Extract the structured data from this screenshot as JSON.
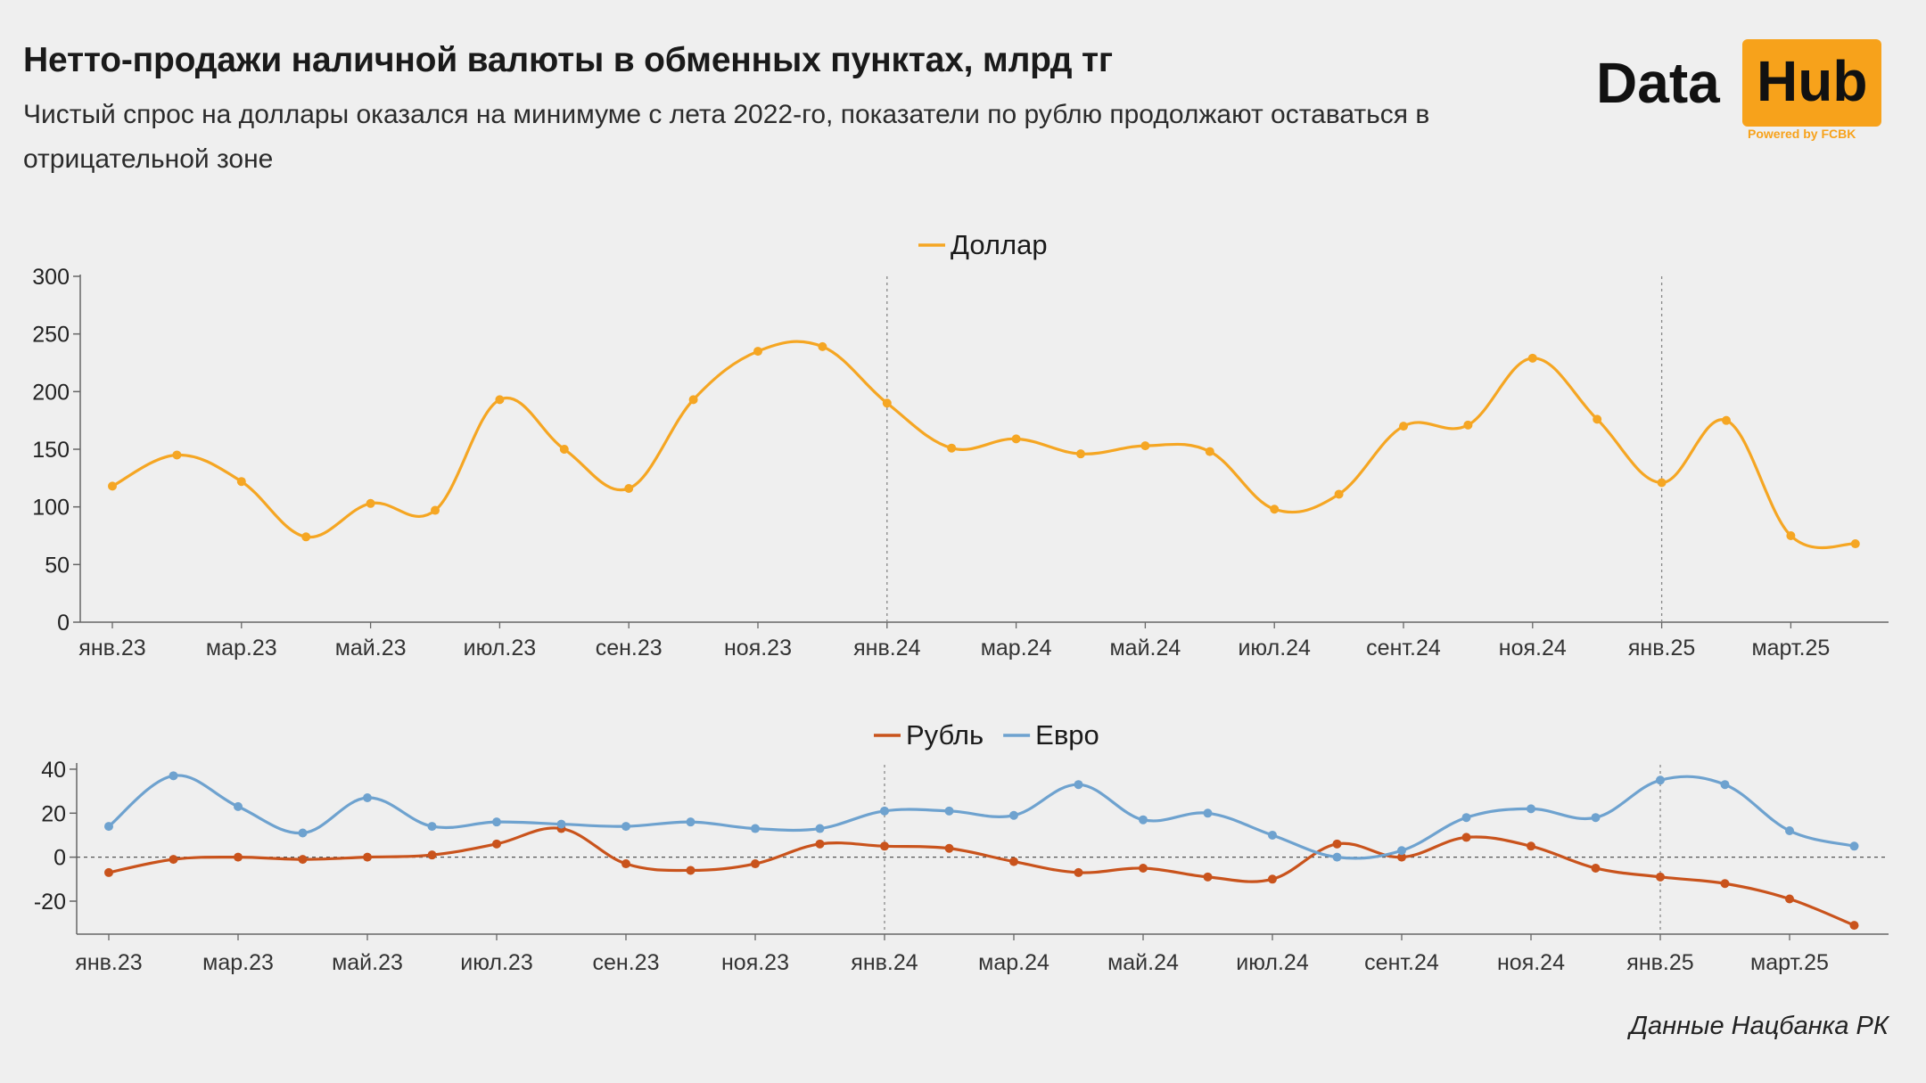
{
  "header": {
    "title": "Нетто-продажи наличной валюты в обменных пунктах, млрд тг",
    "subtitle": "Чистый спрос на доллары оказался на минимуме с лета 2022-го, показатели по рублю продолжают оставаться в отрицательной зоне"
  },
  "logo": {
    "word1": "Data",
    "word2": "Hub",
    "powered": "Powered by FCBK",
    "accent": "#f7a21b"
  },
  "source": "Данные Нацбанка РК",
  "colors": {
    "dollar": "#f5a623",
    "ruble": "#c9531c",
    "euro": "#6ea2cf",
    "axis": "#666666",
    "divider": "#888888",
    "background": "#efefef"
  },
  "chart_data": [
    {
      "type": "line",
      "x": [
        "янв.23",
        "фев.23",
        "мар.23",
        "апр.23",
        "май.23",
        "июн.23",
        "июл.23",
        "авг.23",
        "сен.23",
        "окт.23",
        "ноя.23",
        "дек.23",
        "янв.24",
        "фев.24",
        "мар.24",
        "апр.24",
        "май.24",
        "июн.24",
        "июл.24",
        "авг.24",
        "сент.24",
        "окт.24",
        "ноя.24",
        "дек.24",
        "янв.25",
        "фев.25",
        "март.25",
        "апр.25"
      ],
      "tick_labels": [
        "янв.23",
        "мар.23",
        "май.23",
        "июл.23",
        "сен.23",
        "ноя.23",
        "янв.24",
        "мар.24",
        "май.24",
        "июл.24",
        "сент.24",
        "ноя.24",
        "янв.25",
        "март.25"
      ],
      "series": [
        {
          "name": "Доллар",
          "values": [
            118,
            145,
            122,
            74,
            103,
            97,
            193,
            150,
            116,
            193,
            235,
            239,
            190,
            151,
            159,
            146,
            153,
            148,
            98,
            111,
            170,
            171,
            229,
            176,
            121,
            175,
            75,
            68
          ]
        }
      ],
      "ylim": [
        0,
        300
      ],
      "yticks": [
        0,
        50,
        100,
        150,
        200,
        250,
        300
      ],
      "grid": false,
      "legend": "top-center",
      "year_dividers": [
        "янв.24",
        "янв.25"
      ]
    },
    {
      "type": "line",
      "x": [
        "янв.23",
        "фев.23",
        "мар.23",
        "апр.23",
        "май.23",
        "июн.23",
        "июл.23",
        "авг.23",
        "сен.23",
        "окт.23",
        "ноя.23",
        "дек.23",
        "янв.24",
        "фев.24",
        "мар.24",
        "апр.24",
        "май.24",
        "июн.24",
        "июл.24",
        "авг.24",
        "сент.24",
        "окт.24",
        "ноя.24",
        "дек.24",
        "янв.25",
        "фев.25",
        "март.25",
        "апр.25"
      ],
      "tick_labels": [
        "янв.23",
        "мар.23",
        "май.23",
        "июл.23",
        "сен.23",
        "ноя.23",
        "янв.24",
        "мар.24",
        "май.24",
        "июл.24",
        "сент.24",
        "ноя.24",
        "янв.25",
        "март.25"
      ],
      "series": [
        {
          "name": "Рубль",
          "values": [
            -7,
            -1,
            0,
            -1,
            0,
            1,
            6,
            13,
            -3,
            -6,
            -3,
            6,
            5,
            4,
            -2,
            -7,
            -5,
            -9,
            -10,
            6,
            0,
            9,
            5,
            -5,
            -9,
            -12,
            -19,
            -31
          ]
        },
        {
          "name": "Евро",
          "values": [
            14,
            37,
            23,
            11,
            27,
            14,
            16,
            15,
            14,
            16,
            13,
            13,
            21,
            21,
            19,
            33,
            17,
            20,
            10,
            0,
            3,
            18,
            22,
            18,
            35,
            33,
            12,
            5
          ]
        }
      ],
      "ylim": [
        -35,
        42
      ],
      "yticks": [
        -20,
        0,
        20,
        40
      ],
      "ytick_labels": [
        "-20",
        "0",
        "20",
        "40"
      ],
      "zero_line": "dashed",
      "grid": false,
      "legend": "top-center",
      "year_dividers": [
        "янв.24",
        "янв.25"
      ]
    }
  ]
}
